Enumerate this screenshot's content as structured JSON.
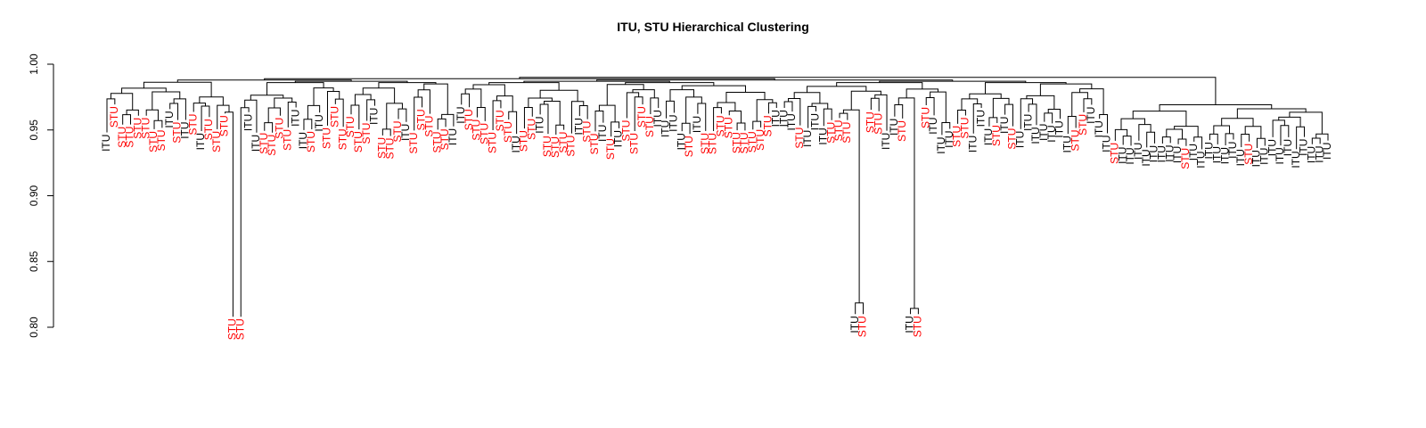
{
  "chart_data": {
    "type": "dendrogram",
    "title": "ITU, STU Hierarchical Clustering",
    "xlabel": "",
    "ylabel": "",
    "ylim": [
      0.8,
      1.0
    ],
    "yticks": [
      "0.80",
      "0.85",
      "0.90",
      "0.95",
      "1.00"
    ],
    "colors": {
      "STU": "#ff0000",
      "ITU": "#000000",
      "branch": "#000000"
    },
    "leaf_count": 156,
    "root_height": 0.99,
    "approx_cluster_heights": {
      "outlier_left_stu": 0.826,
      "outlier_right_itu_stu": 0.844,
      "outlier_right_stu": 0.842,
      "itu_group_right": 0.972
    },
    "leaf_label_texts": [
      "STU",
      "ITU"
    ]
  }
}
